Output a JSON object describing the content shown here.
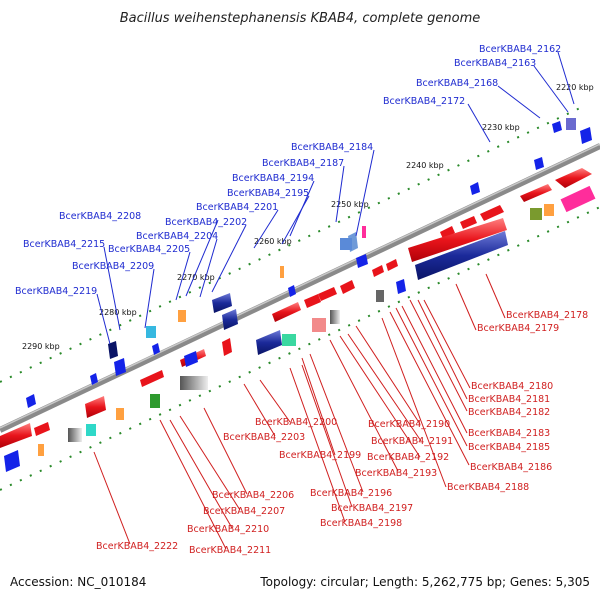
{
  "title": "Bacillus weihenstephanensis KBAB4, complete genome",
  "accession": "Accession: NC_010184",
  "topology": "Topology: circular; Length: 5,262,775 bp; Genes: 5,305",
  "colors": {
    "forward_gene": "#e8141b",
    "reverse_gene": "#1423e8",
    "backbone": "#8c8c8c",
    "top_label": "#1f2bd0",
    "bottom_label": "#d01f1f"
  },
  "ticks": [
    "2220 kbp",
    "2230 kbp",
    "2240 kbp",
    "2250 kbp",
    "2260 kbp",
    "2270 kbp",
    "2280 kbp",
    "2290 kbp"
  ],
  "top_labels": [
    "BcerKBAB4_2162",
    "BcerKBAB4_2163",
    "BcerKBAB4_2168",
    "BcerKBAB4_2172",
    "BcerKBAB4_2184",
    "BcerKBAB4_2187",
    "BcerKBAB4_2194",
    "BcerKBAB4_2195",
    "BcerKBAB4_2201",
    "BcerKBAB4_2208",
    "BcerKBAB4_2202",
    "BcerKBAB4_2204",
    "BcerKBAB4_2215",
    "BcerKBAB4_2205",
    "BcerKBAB4_2209",
    "BcerKBAB4_2219"
  ],
  "bottom_labels": [
    "BcerKBAB4_2178",
    "BcerKBAB4_2179",
    "BcerKBAB4_2180",
    "BcerKBAB4_2181",
    "BcerKBAB4_2182",
    "BcerKBAB4_2183",
    "BcerKBAB4_2185",
    "BcerKBAB4_2186",
    "BcerKBAB4_2188",
    "BcerKBAB4_2190",
    "BcerKBAB4_2191",
    "BcerKBAB4_2192",
    "BcerKBAB4_2193",
    "BcerKBAB4_2200",
    "BcerKBAB4_2203",
    "BcerKBAB4_2199",
    "BcerKBAB4_2196",
    "BcerKBAB4_2197",
    "BcerKBAB4_2198",
    "BcerKBAB4_2206",
    "BcerKBAB4_2207",
    "BcerKBAB4_2210",
    "BcerKBAB4_2211",
    "BcerKBAB4_2222"
  ]
}
